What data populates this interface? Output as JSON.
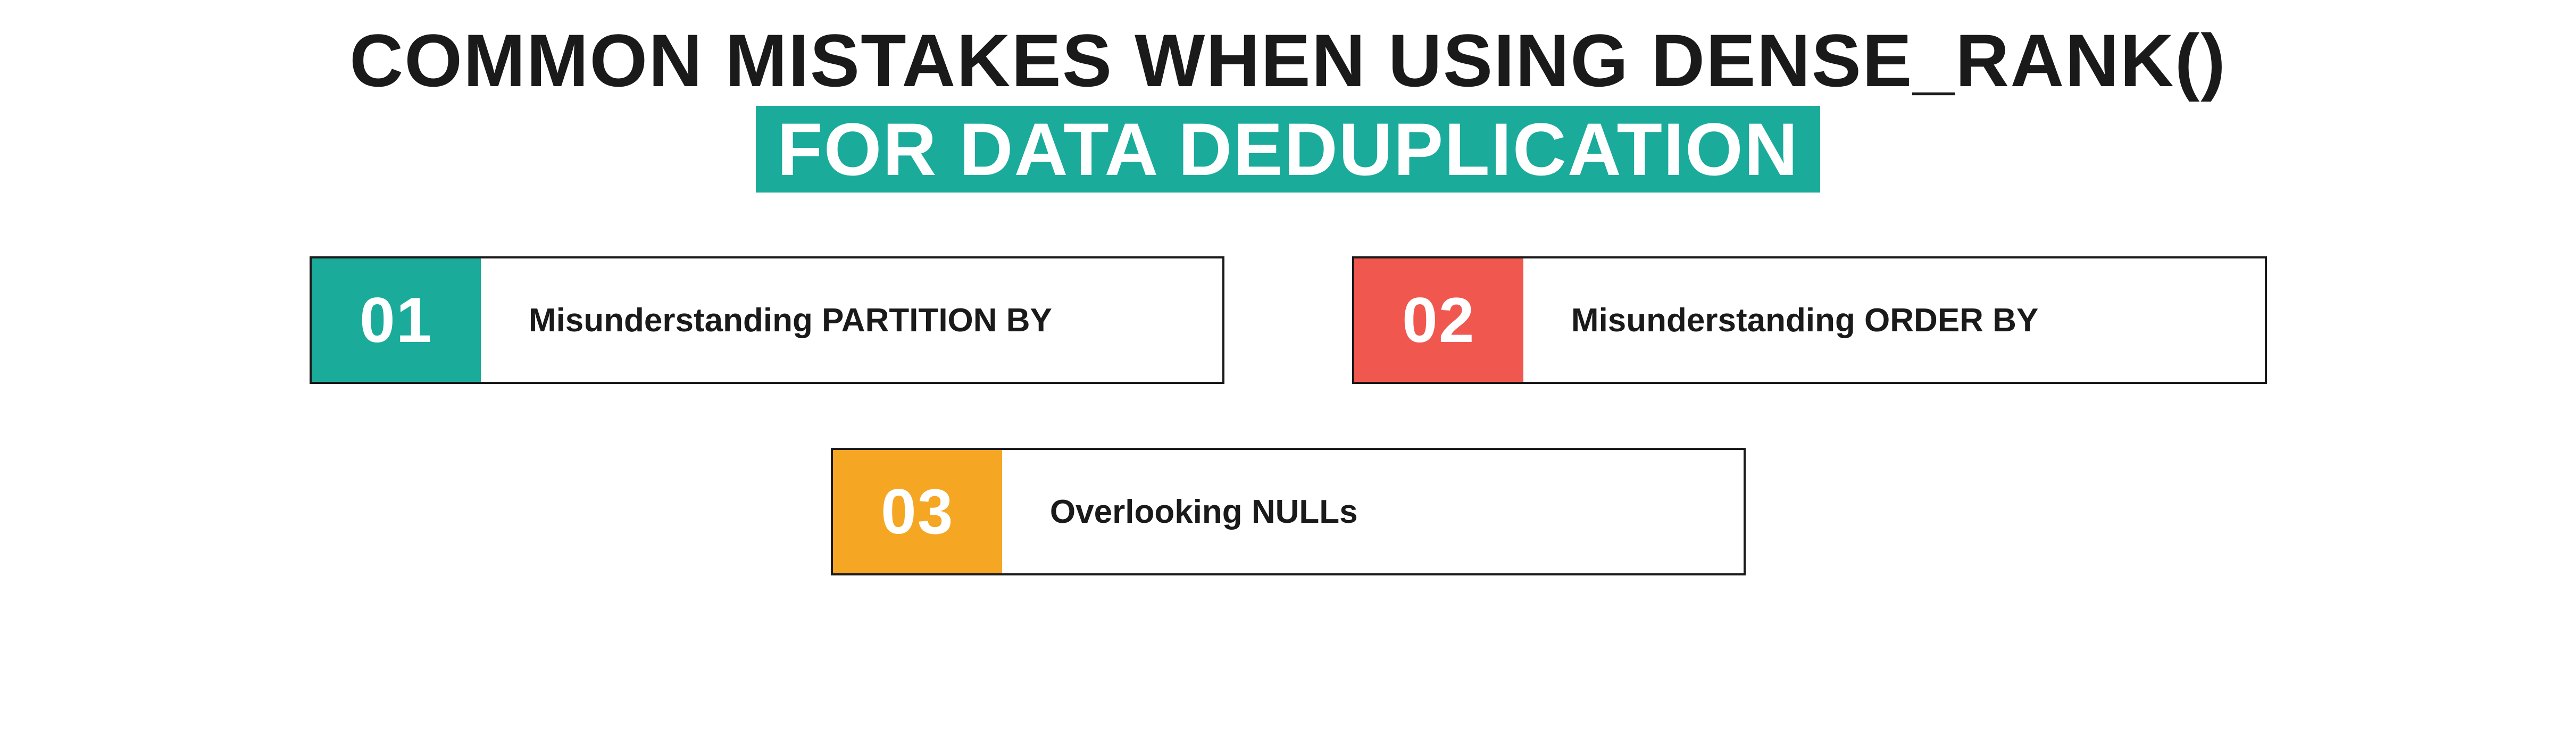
{
  "title": {
    "line1": "COMMON MISTAKES WHEN USING DENSE_RANK()",
    "line2": "FOR DATA DEDUPLICATION",
    "line1_color": "#1a1a1a",
    "line2_color": "#ffffff",
    "line2_bg": "#1aab9b",
    "fontsize": 140
  },
  "layout": {
    "item_width": 1720,
    "item_height": 240,
    "num_box_width": 320,
    "num_fontsize": 120,
    "label_fontsize": 62,
    "num_color": "#ffffff",
    "border_color": "#1a1a1a"
  },
  "items": [
    {
      "num": "01",
      "label": "Misunderstanding PARTITION BY",
      "num_bg": "#1aab9b"
    },
    {
      "num": "02",
      "label": "Misunderstanding ORDER BY",
      "num_bg": "#f0574f"
    },
    {
      "num": "03",
      "label": "Overlooking NULLs",
      "num_bg": "#f5a623"
    }
  ],
  "background_color": "#ffffff"
}
